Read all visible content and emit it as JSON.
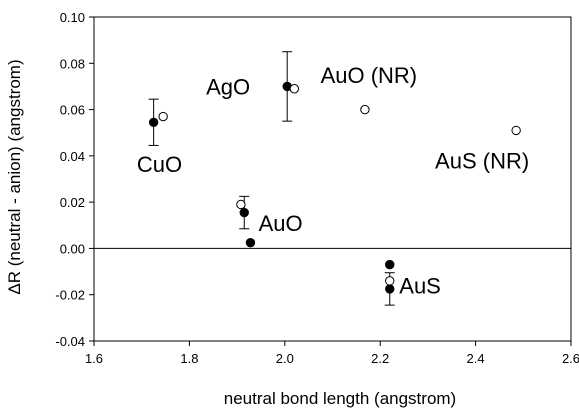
{
  "chart_data": {
    "type": "scatter",
    "xlabel": "neutral bond length (angstrom)",
    "ylabel": "ΔR (neutral - anion) (angstrom)",
    "xlim": [
      1.6,
      2.6
    ],
    "ylim": [
      -0.04,
      0.1
    ],
    "x_ticks": [
      1.6,
      1.8,
      2.0,
      2.2,
      2.4,
      2.6
    ],
    "x_tick_labels": [
      "1.6",
      "1.8",
      "2.0",
      "2.2",
      "2.4",
      "2.6"
    ],
    "y_ticks": [
      -0.04,
      -0.02,
      0.0,
      0.02,
      0.04,
      0.06,
      0.08,
      0.1
    ],
    "y_tick_labels": [
      "-0.04",
      "-0.02",
      "0.00",
      "0.02",
      "0.04",
      "0.06",
      "0.08",
      "0.10"
    ],
    "grid": false,
    "zero_line": true,
    "series": [
      {
        "marker": "filled-circle",
        "points": [
          {
            "x": 1.725,
            "y": 0.0545,
            "err": 0.01
          },
          {
            "x": 2.005,
            "y": 0.07,
            "err": 0.015
          },
          {
            "x": 1.915,
            "y": 0.0155,
            "err": 0.007
          },
          {
            "x": 1.928,
            "y": 0.0025,
            "err": 0
          },
          {
            "x": 2.22,
            "y": -0.007,
            "err": 0
          },
          {
            "x": 2.22,
            "y": -0.0175,
            "err": 0.007
          }
        ]
      },
      {
        "marker": "open-circle",
        "points": [
          {
            "x": 1.745,
            "y": 0.057
          },
          {
            "x": 2.02,
            "y": 0.069
          },
          {
            "x": 1.908,
            "y": 0.019
          },
          {
            "x": 2.22,
            "y": -0.014
          },
          {
            "x": 2.168,
            "y": 0.06
          },
          {
            "x": 2.485,
            "y": 0.051
          }
        ]
      }
    ],
    "annotations": [
      {
        "text": "CuO",
        "x": 1.69,
        "y": 0.033
      },
      {
        "text": "AgO",
        "x": 1.835,
        "y": 0.0665
      },
      {
        "text": "AuO (NR)",
        "x": 2.075,
        "y": 0.0715
      },
      {
        "text": "AuS (NR)",
        "x": 2.315,
        "y": 0.0345
      },
      {
        "text": "AuO",
        "x": 1.945,
        "y": 0.0075
      },
      {
        "text": "AuS",
        "x": 2.24,
        "y": -0.0195
      }
    ]
  }
}
